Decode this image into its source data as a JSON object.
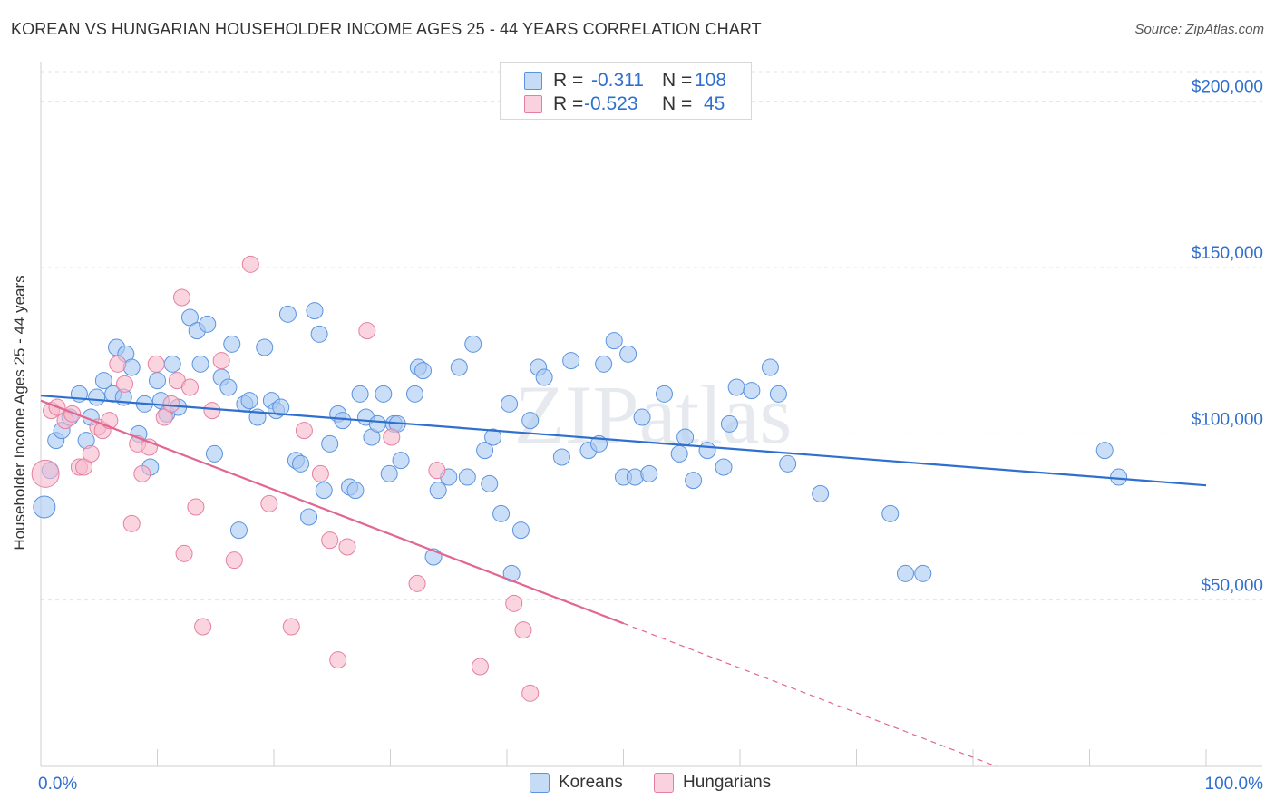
{
  "title": "KOREAN VS HUNGARIAN HOUSEHOLDER INCOME AGES 25 - 44 YEARS CORRELATION CHART",
  "source": "Source: ZipAtlas.com",
  "watermark": "ZIPatlas",
  "legend": {
    "rows": [
      {
        "r_label": "R =",
        "r_value": "-0.311",
        "n_label": "N =",
        "n_value": "108",
        "color": "#a9c8f2"
      },
      {
        "r_label": "R =",
        "r_value": "-0.523",
        "n_label": "N =",
        "n_value": "45",
        "color": "#f6b9cb"
      }
    ]
  },
  "bottom_legend": [
    {
      "label": "Koreans",
      "color": "#a9c8f2"
    },
    {
      "label": "Hungarians",
      "color": "#f6b9cb"
    }
  ],
  "chart_data": {
    "type": "scatter",
    "title": "KOREAN VS HUNGARIAN HOUSEHOLDER INCOME AGES 25 - 44 YEARS CORRELATION CHART",
    "xlabel": "",
    "ylabel": "Householder Income Ages 25 - 44 years",
    "xlim": [
      0,
      100
    ],
    "ylim": [
      0,
      210000
    ],
    "x_tick_labels": [
      "0.0%",
      "100.0%"
    ],
    "y_ticks": [
      50000,
      100000,
      150000,
      200000
    ],
    "y_tick_labels": [
      "$50,000",
      "$100,000",
      "$150,000",
      "$200,000"
    ],
    "grid": true,
    "legend_position": "bottom",
    "series": [
      {
        "name": "Koreans",
        "color": "#5a93df",
        "fill": "#a9c8f2",
        "trend": {
          "x0": 0,
          "y0": 111500,
          "x1": 100,
          "y1": 84500,
          "color": "#2f6fce"
        },
        "points": [
          [
            0.3,
            78000
          ],
          [
            0.8,
            89000
          ],
          [
            1.3,
            98000
          ],
          [
            1.8,
            101000
          ],
          [
            2.5,
            105000
          ],
          [
            3.3,
            112000
          ],
          [
            3.9,
            98000
          ],
          [
            4.3,
            105000
          ],
          [
            4.8,
            111000
          ],
          [
            5.4,
            116000
          ],
          [
            6.2,
            112000
          ],
          [
            6.5,
            126000
          ],
          [
            7.1,
            111000
          ],
          [
            7.3,
            124000
          ],
          [
            7.8,
            120000
          ],
          [
            8.4,
            100000
          ],
          [
            8.9,
            109000
          ],
          [
            9.4,
            90000
          ],
          [
            10.0,
            116000
          ],
          [
            10.3,
            110000
          ],
          [
            10.8,
            106000
          ],
          [
            11.3,
            121000
          ],
          [
            11.8,
            108000
          ],
          [
            12.8,
            135000
          ],
          [
            13.4,
            131000
          ],
          [
            13.7,
            121000
          ],
          [
            14.3,
            133000
          ],
          [
            14.9,
            94000
          ],
          [
            15.5,
            117000
          ],
          [
            16.1,
            114000
          ],
          [
            16.4,
            127000
          ],
          [
            17.0,
            71000
          ],
          [
            17.5,
            109000
          ],
          [
            17.9,
            110000
          ],
          [
            18.6,
            105000
          ],
          [
            19.2,
            126000
          ],
          [
            19.8,
            110000
          ],
          [
            20.2,
            107000
          ],
          [
            20.6,
            108000
          ],
          [
            21.2,
            136000
          ],
          [
            21.9,
            92000
          ],
          [
            22.3,
            91000
          ],
          [
            23.0,
            75000
          ],
          [
            23.5,
            137000
          ],
          [
            23.9,
            130000
          ],
          [
            24.3,
            83000
          ],
          [
            24.8,
            97000
          ],
          [
            25.5,
            106000
          ],
          [
            25.9,
            104000
          ],
          [
            26.5,
            84000
          ],
          [
            27.0,
            83000
          ],
          [
            27.4,
            112000
          ],
          [
            27.9,
            105000
          ],
          [
            28.4,
            99000
          ],
          [
            28.9,
            103000
          ],
          [
            29.4,
            112000
          ],
          [
            29.9,
            88000
          ],
          [
            30.3,
            103000
          ],
          [
            30.6,
            103000
          ],
          [
            30.9,
            92000
          ],
          [
            32.1,
            112000
          ],
          [
            32.4,
            120000
          ],
          [
            32.8,
            119000
          ],
          [
            33.7,
            63000
          ],
          [
            34.1,
            83000
          ],
          [
            35.0,
            87000
          ],
          [
            35.9,
            120000
          ],
          [
            36.6,
            87000
          ],
          [
            37.1,
            127000
          ],
          [
            38.1,
            95000
          ],
          [
            38.5,
            85000
          ],
          [
            38.8,
            99000
          ],
          [
            39.5,
            76000
          ],
          [
            40.2,
            109000
          ],
          [
            40.4,
            58000
          ],
          [
            41.2,
            71000
          ],
          [
            42.0,
            104000
          ],
          [
            42.7,
            120000
          ],
          [
            43.2,
            117000
          ],
          [
            44.7,
            93000
          ],
          [
            45.5,
            122000
          ],
          [
            47.0,
            95000
          ],
          [
            47.9,
            97000
          ],
          [
            48.3,
            121000
          ],
          [
            49.2,
            128000
          ],
          [
            50.0,
            87000
          ],
          [
            50.4,
            124000
          ],
          [
            51.0,
            87000
          ],
          [
            51.6,
            105000
          ],
          [
            52.2,
            88000
          ],
          [
            53.5,
            112000
          ],
          [
            54.8,
            94000
          ],
          [
            55.3,
            99000
          ],
          [
            56.0,
            86000
          ],
          [
            57.2,
            95000
          ],
          [
            58.6,
            90000
          ],
          [
            59.1,
            103000
          ],
          [
            59.7,
            114000
          ],
          [
            61.0,
            113000
          ],
          [
            62.6,
            120000
          ],
          [
            63.3,
            112000
          ],
          [
            64.1,
            91000
          ],
          [
            66.9,
            82000
          ],
          [
            72.9,
            76000
          ],
          [
            74.2,
            58000
          ],
          [
            75.7,
            58000
          ],
          [
            91.3,
            95000
          ],
          [
            92.5,
            87000
          ]
        ]
      },
      {
        "name": "Hungarians",
        "color": "#e57fa1",
        "fill": "#f6b9cb",
        "trend": {
          "x0": 0,
          "y0": 110000,
          "x1": 50,
          "y1": 43000,
          "color": "#e26690",
          "dash_to": {
            "x": 82,
            "y": 0
          }
        },
        "points": [
          [
            0.4,
            88000
          ],
          [
            0.9,
            107000
          ],
          [
            1.4,
            108000
          ],
          [
            2.1,
            104000
          ],
          [
            2.7,
            106000
          ],
          [
            3.3,
            90000
          ],
          [
            3.7,
            90000
          ],
          [
            4.3,
            94000
          ],
          [
            4.9,
            102000
          ],
          [
            5.3,
            101000
          ],
          [
            5.9,
            104000
          ],
          [
            6.6,
            121000
          ],
          [
            7.2,
            115000
          ],
          [
            7.8,
            73000
          ],
          [
            8.3,
            97000
          ],
          [
            8.7,
            88000
          ],
          [
            9.3,
            96000
          ],
          [
            9.9,
            121000
          ],
          [
            10.6,
            105000
          ],
          [
            11.2,
            109000
          ],
          [
            11.7,
            116000
          ],
          [
            12.1,
            141000
          ],
          [
            12.3,
            64000
          ],
          [
            12.8,
            114000
          ],
          [
            13.3,
            78000
          ],
          [
            13.9,
            42000
          ],
          [
            14.7,
            107000
          ],
          [
            15.5,
            122000
          ],
          [
            16.6,
            62000
          ],
          [
            18.0,
            151000
          ],
          [
            19.6,
            79000
          ],
          [
            21.5,
            42000
          ],
          [
            22.6,
            101000
          ],
          [
            24.0,
            88000
          ],
          [
            24.8,
            68000
          ],
          [
            25.5,
            32000
          ],
          [
            26.3,
            66000
          ],
          [
            28.0,
            131000
          ],
          [
            30.1,
            99000
          ],
          [
            32.3,
            55000
          ],
          [
            34.0,
            89000
          ],
          [
            37.7,
            30000
          ],
          [
            40.6,
            49000
          ],
          [
            41.4,
            41000
          ],
          [
            42.0,
            22000
          ]
        ]
      }
    ]
  }
}
